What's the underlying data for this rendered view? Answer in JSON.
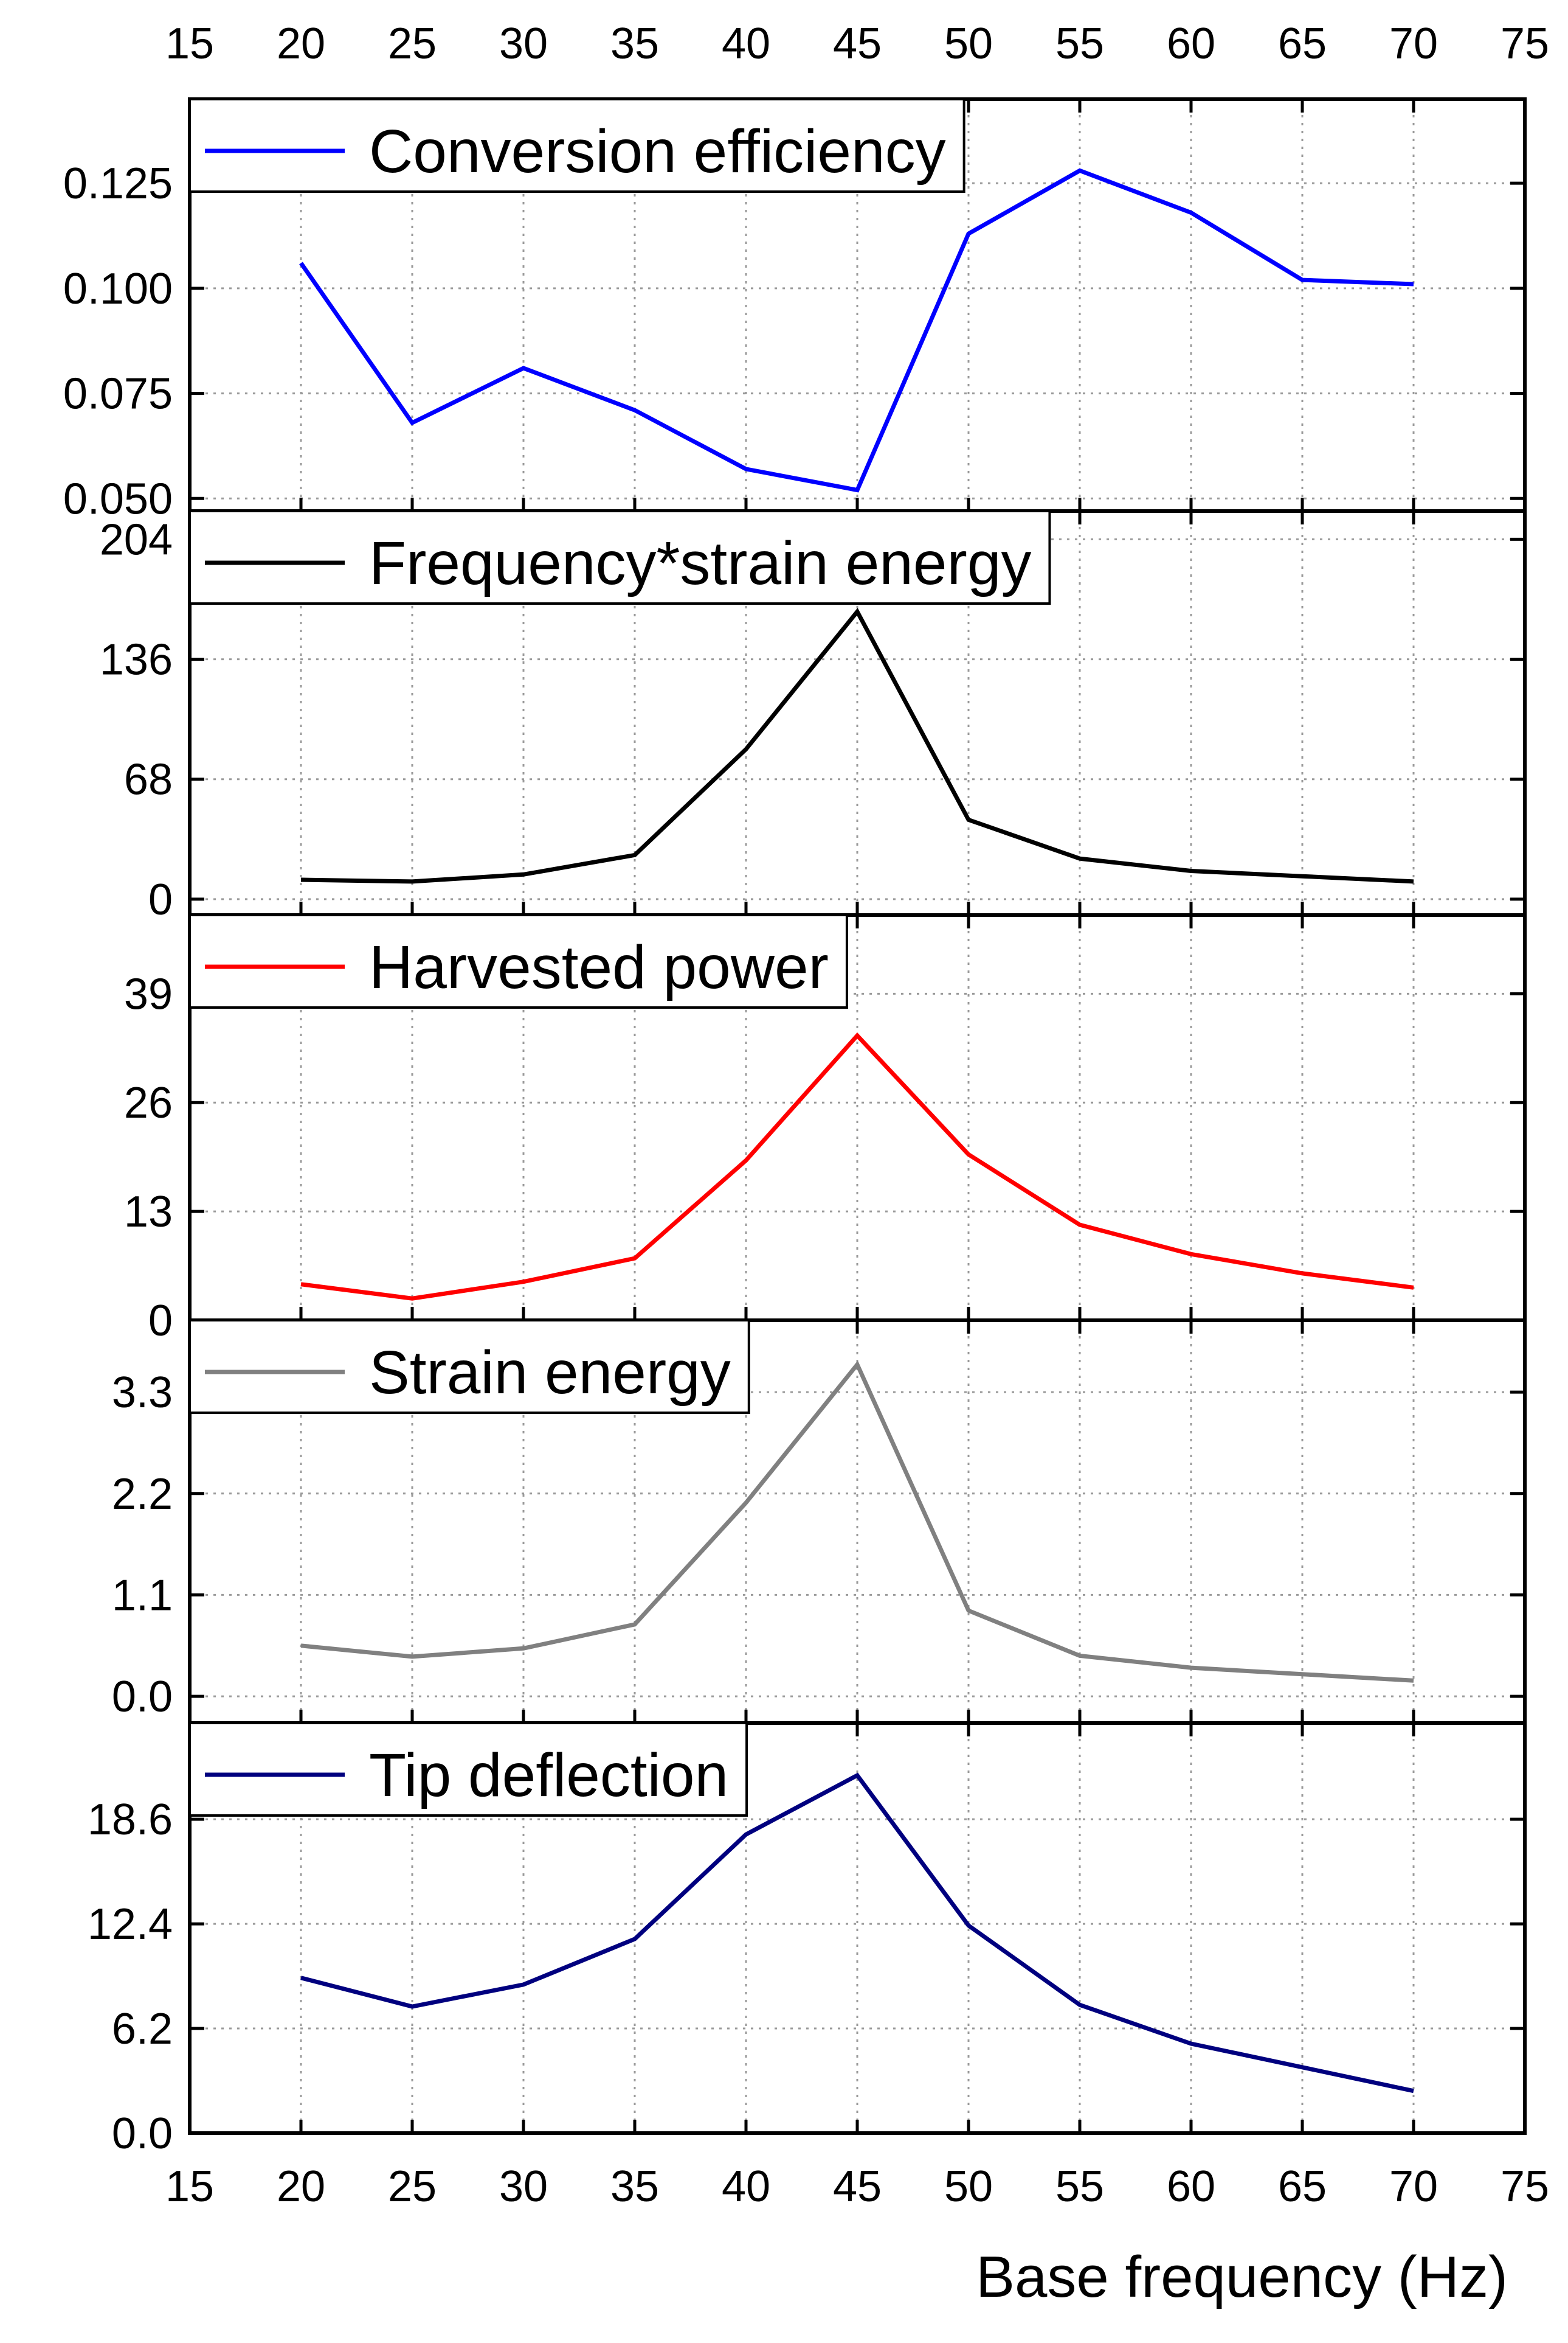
{
  "chart_data": {
    "type": "line",
    "layout": "stacked-panels",
    "xlabel": "Base frequency (Hz)",
    "x_axis": {
      "range": [
        15,
        75
      ],
      "ticks": [
        15,
        20,
        25,
        30,
        35,
        40,
        45,
        50,
        55,
        60,
        65,
        70,
        75
      ],
      "tick_labels": [
        "15",
        "20",
        "25",
        "30",
        "35",
        "40",
        "45",
        "50",
        "55",
        "60",
        "65",
        "70",
        "75"
      ]
    },
    "grid": true,
    "panels": [
      {
        "legend": "Conversion efficiency",
        "color": "#0000ff",
        "x": [
          20,
          25,
          30,
          35,
          40,
          45,
          50,
          55,
          60,
          65,
          70
        ],
        "values": [
          0.106,
          0.068,
          0.081,
          0.071,
          0.057,
          0.052,
          0.113,
          0.128,
          0.118,
          0.102,
          0.101
        ],
        "ylim": [
          0.047,
          0.145
        ],
        "ticks": [
          0.05,
          0.075,
          0.1,
          0.125
        ],
        "tick_labels": [
          "0.050",
          "0.075",
          "0.100",
          "0.125"
        ]
      },
      {
        "legend": "Frequency*strain energy",
        "color": "#000000",
        "x": [
          20,
          25,
          30,
          35,
          40,
          45,
          50,
          55,
          60,
          65,
          70
        ],
        "values": [
          11,
          10,
          14,
          25,
          85,
          163,
          45,
          23,
          16,
          13,
          10
        ],
        "ylim": [
          -9,
          220
        ],
        "ticks": [
          0,
          68,
          136,
          204
        ],
        "tick_labels": [
          "0",
          "68",
          "136",
          "204"
        ]
      },
      {
        "legend": "Harvested power",
        "color": "#ff0000",
        "x": [
          20,
          25,
          30,
          35,
          40,
          45,
          50,
          55,
          60,
          65,
          70
        ],
        "values": [
          4.3,
          2.6,
          4.6,
          7.4,
          19.1,
          34.0,
          19.8,
          11.4,
          7.9,
          5.6,
          3.9
        ],
        "ylim": [
          0,
          48.4
        ],
        "ticks": [
          0,
          13,
          26,
          39
        ],
        "tick_labels": [
          "0",
          "13",
          "26",
          "39"
        ]
      },
      {
        "legend": "Strain energy",
        "color": "#808080",
        "x": [
          20,
          25,
          30,
          35,
          40,
          45,
          50,
          55,
          60,
          65,
          70
        ],
        "values": [
          0.55,
          0.43,
          0.52,
          0.78,
          2.1,
          3.6,
          0.93,
          0.44,
          0.31,
          0.24,
          0.17
        ],
        "ylim": [
          -0.29,
          4.08
        ],
        "ticks": [
          0,
          1.1,
          2.2,
          3.3
        ],
        "tick_labels": [
          "0.0",
          "1.1",
          "2.2",
          "3.3"
        ]
      },
      {
        "legend": "Tip deflection",
        "color": "#00007f",
        "x": [
          20,
          25,
          30,
          35,
          40,
          45,
          50,
          55,
          60,
          65,
          70
        ],
        "values": [
          9.2,
          7.5,
          8.8,
          11.5,
          17.7,
          21.2,
          12.3,
          7.6,
          5.3,
          3.9,
          2.5
        ],
        "ylim": [
          0,
          24.3
        ],
        "ticks": [
          0,
          6.2,
          12.4,
          18.6
        ],
        "tick_labels": [
          "0.0",
          "6.2",
          "12.4",
          "18.6"
        ]
      }
    ]
  }
}
